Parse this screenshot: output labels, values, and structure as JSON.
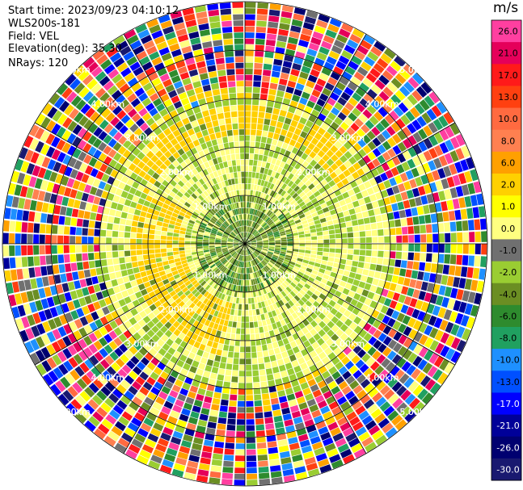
{
  "info": {
    "start_time": "Start time: 2023/09/23 04:10:12",
    "instrument": "WLS200s-181",
    "field": "Field: VEL",
    "elevation": "Elevation(deg): 35.30",
    "nrays": "NRays: 120"
  },
  "colorbar": {
    "unit": "m/s",
    "tick_labels": [
      "26.0",
      "21.0",
      "17.0",
      "13.0",
      "10.0",
      "8.0",
      "6.0",
      "2.0",
      "1.0",
      "0.0",
      "-1.0",
      "-2.0",
      "-4.0",
      "-6.0",
      "-8.0",
      "-10.0",
      "-13.0",
      "-17.0",
      "-21.0",
      "-26.0",
      "-30.0"
    ],
    "colors": [
      "#ff3fa0",
      "#e5005a",
      "#ff1a1a",
      "#ff4010",
      "#ff6a40",
      "#ff8050",
      "#ffa000",
      "#ffd000",
      "#ffff00",
      "#ffff80",
      "#707070",
      "#9acd32",
      "#6b8e23",
      "#2e8b2e",
      "#20a060",
      "#1e90ff",
      "#0050ff",
      "#0000ff",
      "#000099",
      "#000070",
      "#191970"
    ]
  },
  "chart_data": {
    "type": "heatmap",
    "projection": "polar PPI scan",
    "field": "VEL",
    "units": "m/s",
    "nrays": 120,
    "color_range": [
      -30,
      30
    ],
    "range_rings_km": [
      1.0,
      2.0,
      3.0,
      4.0,
      5.0
    ],
    "range_ring_labels": [
      "1.00km",
      "2.00km",
      "3.00km",
      "4.00km",
      "5.00km"
    ],
    "spokes_deg": [
      0,
      30,
      60,
      90,
      120,
      150,
      180,
      210,
      240,
      270,
      300,
      330
    ],
    "velocity_pattern": {
      "near_range_km": [
        0,
        1.0
      ],
      "near_range_values": "dark green / olive, about -2 to -6 m/s",
      "mid_range_km": [
        1.0,
        3.0
      ],
      "mid_range_values": "grey and yellow-green, about 0 to -2 m/s; yellow patches (+2 to +4 m/s) toward south-west and north",
      "outer_range_km": [
        3.0,
        5.0
      ],
      "outer_range_values": "noise: random colors across full scale"
    }
  }
}
